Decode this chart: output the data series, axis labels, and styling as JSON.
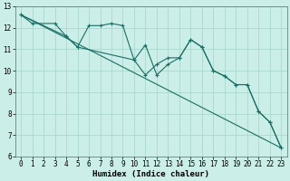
{
  "xlabel": "Humidex (Indice chaleur)",
  "bg_color": "#cceee8",
  "grid_color": "#aad8d0",
  "line_color": "#1a6e64",
  "xlim": [
    -0.5,
    23.5
  ],
  "ylim": [
    6,
    13
  ],
  "xtick_labels": [
    "0",
    "1",
    "2",
    "3",
    "4",
    "5",
    "6",
    "7",
    "8",
    "9",
    "10",
    "11",
    "12",
    "13",
    "14",
    "15",
    "16",
    "17",
    "18",
    "19",
    "20",
    "21",
    "22",
    "23"
  ],
  "xtick_vals": [
    0,
    1,
    2,
    3,
    4,
    5,
    6,
    7,
    8,
    9,
    10,
    11,
    12,
    13,
    14,
    15,
    16,
    17,
    18,
    19,
    20,
    21,
    22,
    23
  ],
  "ytick_vals": [
    6,
    7,
    8,
    9,
    10,
    11,
    12,
    13
  ],
  "line1_x": [
    0,
    1,
    3,
    4,
    5,
    6,
    7,
    8,
    9,
    10,
    11,
    12,
    13,
    14,
    15,
    16,
    17,
    18,
    19,
    20,
    21,
    22,
    23
  ],
  "line1_y": [
    12.6,
    12.2,
    12.2,
    11.6,
    11.1,
    12.1,
    12.1,
    12.2,
    12.1,
    10.5,
    9.8,
    10.3,
    10.6,
    10.6,
    11.45,
    11.1,
    10.0,
    9.75,
    9.35,
    9.35,
    8.1,
    7.6,
    6.4
  ],
  "line2_x": [
    0,
    4,
    5,
    10,
    11,
    12,
    13,
    14,
    15,
    16,
    17,
    18,
    19,
    20,
    21,
    22,
    23
  ],
  "line2_y": [
    12.6,
    11.6,
    11.1,
    10.5,
    11.2,
    9.8,
    10.3,
    10.6,
    11.45,
    11.1,
    10.0,
    9.75,
    9.35,
    9.35,
    8.1,
    7.6,
    6.4
  ],
  "line3_x": [
    0,
    23
  ],
  "line3_y": [
    12.6,
    6.4
  ],
  "lw": 0.8,
  "ms": 3.0,
  "tick_fontsize": 5.5,
  "xlabel_fontsize": 6.5
}
